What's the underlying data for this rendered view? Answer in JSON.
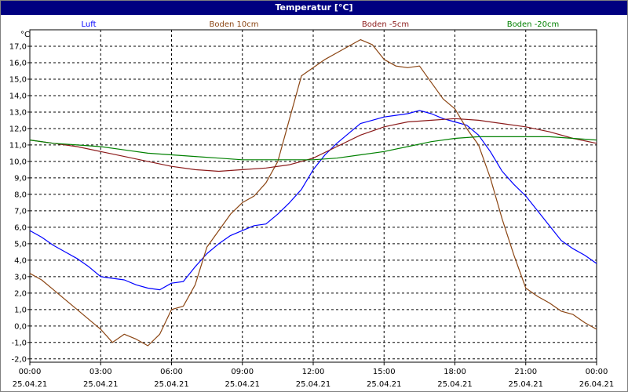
{
  "title": "Temperatur [°C]",
  "colors": {
    "titlebar": "#000080",
    "grid": "#000000"
  },
  "chart_data": {
    "type": "line",
    "title": "Temperatur [°C]",
    "ylabel": "°C",
    "ylim": [
      -2.2,
      18.0
    ],
    "yticks": [
      "17,0",
      "16,0",
      "15,0",
      "14,0",
      "13,0",
      "12,0",
      "11,0",
      "10,0",
      "9,0",
      "8,0",
      "7,0",
      "6,0",
      "5,0",
      "4,0",
      "3,0",
      "2,0",
      "1,0",
      "0,0",
      "-1,0",
      "-2,0"
    ],
    "ytick_values": [
      17,
      16,
      15,
      14,
      13,
      12,
      11,
      10,
      9,
      8,
      7,
      6,
      5,
      4,
      3,
      2,
      1,
      0,
      -1,
      -2
    ],
    "xlim": [
      0,
      24
    ],
    "xticks": [
      {
        "t": 0,
        "time": "00:00",
        "date": "25.04.21"
      },
      {
        "t": 3,
        "time": "03:00",
        "date": "25.04.21"
      },
      {
        "t": 6,
        "time": "06:00",
        "date": "25.04.21"
      },
      {
        "t": 9,
        "time": "09:00",
        "date": "25.04.21"
      },
      {
        "t": 12,
        "time": "12:00",
        "date": "25.04.21"
      },
      {
        "t": 15,
        "time": "15:00",
        "date": "25.04.21"
      },
      {
        "t": 18,
        "time": "18:00",
        "date": "25.04.21"
      },
      {
        "t": 21,
        "time": "21:00",
        "date": "25.04.21"
      },
      {
        "t": 24,
        "time": "00:00",
        "date": "26.04.21"
      }
    ],
    "grid": true,
    "legend": "top",
    "series": [
      {
        "name": "Luft",
        "color": "#0000ff",
        "points": [
          [
            0,
            5.8
          ],
          [
            0.5,
            5.4
          ],
          [
            1,
            4.9
          ],
          [
            1.5,
            4.5
          ],
          [
            2,
            4.1
          ],
          [
            2.5,
            3.6
          ],
          [
            3,
            3.0
          ],
          [
            3.5,
            2.9
          ],
          [
            4,
            2.8
          ],
          [
            4.5,
            2.5
          ],
          [
            5,
            2.3
          ],
          [
            5.5,
            2.2
          ],
          [
            6,
            2.6
          ],
          [
            6.5,
            2.7
          ],
          [
            7,
            3.6
          ],
          [
            7.5,
            4.4
          ],
          [
            8,
            5.0
          ],
          [
            8.5,
            5.5
          ],
          [
            9,
            5.8
          ],
          [
            9.5,
            6.1
          ],
          [
            10,
            6.2
          ],
          [
            10.5,
            6.8
          ],
          [
            11,
            7.5
          ],
          [
            11.5,
            8.3
          ],
          [
            12,
            9.5
          ],
          [
            12.5,
            10.4
          ],
          [
            13,
            11.1
          ],
          [
            13.5,
            11.7
          ],
          [
            14,
            12.3
          ],
          [
            14.5,
            12.5
          ],
          [
            15,
            12.7
          ],
          [
            15.5,
            12.8
          ],
          [
            16,
            12.9
          ],
          [
            16.5,
            13.1
          ],
          [
            17,
            12.9
          ],
          [
            17.5,
            12.6
          ],
          [
            18,
            12.4
          ],
          [
            18.5,
            12.2
          ],
          [
            19,
            11.6
          ],
          [
            19.5,
            10.6
          ],
          [
            20,
            9.4
          ],
          [
            20.5,
            8.6
          ],
          [
            21,
            7.9
          ],
          [
            21.5,
            7.0
          ],
          [
            22,
            6.1
          ],
          [
            22.5,
            5.2
          ],
          [
            23,
            4.7
          ],
          [
            23.5,
            4.3
          ],
          [
            24,
            3.8
          ]
        ]
      },
      {
        "name": "Boden 10cm",
        "color": "#8b4513",
        "points": [
          [
            0,
            3.2
          ],
          [
            0.5,
            2.8
          ],
          [
            1,
            2.2
          ],
          [
            1.5,
            1.6
          ],
          [
            2,
            1.0
          ],
          [
            2.5,
            0.4
          ],
          [
            3,
            -0.2
          ],
          [
            3.5,
            -1.0
          ],
          [
            4,
            -0.5
          ],
          [
            4.5,
            -0.8
          ],
          [
            5,
            -1.2
          ],
          [
            5.5,
            -0.5
          ],
          [
            6,
            1.0
          ],
          [
            6.5,
            1.2
          ],
          [
            7,
            2.5
          ],
          [
            7.5,
            4.8
          ],
          [
            8,
            5.8
          ],
          [
            8.5,
            6.8
          ],
          [
            9,
            7.5
          ],
          [
            9.5,
            7.9
          ],
          [
            10,
            8.7
          ],
          [
            10.5,
            10.0
          ],
          [
            11,
            12.6
          ],
          [
            11.5,
            15.2
          ],
          [
            12,
            15.7
          ],
          [
            12.5,
            16.2
          ],
          [
            13,
            16.6
          ],
          [
            13.5,
            17.0
          ],
          [
            14,
            17.4
          ],
          [
            14.5,
            17.1
          ],
          [
            15,
            16.2
          ],
          [
            15.5,
            15.8
          ],
          [
            16,
            15.7
          ],
          [
            16.5,
            15.8
          ],
          [
            17,
            14.8
          ],
          [
            17.5,
            13.8
          ],
          [
            18,
            13.2
          ],
          [
            18.5,
            12.0
          ],
          [
            19,
            11.0
          ],
          [
            19.5,
            9.0
          ],
          [
            20,
            6.5
          ],
          [
            20.5,
            4.3
          ],
          [
            21,
            2.3
          ],
          [
            21.5,
            1.8
          ],
          [
            22,
            1.4
          ],
          [
            22.5,
            0.9
          ],
          [
            23,
            0.7
          ],
          [
            23.5,
            0.2
          ],
          [
            24,
            -0.2
          ]
        ]
      },
      {
        "name": "Boden -5cm",
        "color": "#8b1a1a",
        "points": [
          [
            0,
            11.3
          ],
          [
            1,
            11.1
          ],
          [
            2,
            10.9
          ],
          [
            3,
            10.6
          ],
          [
            4,
            10.3
          ],
          [
            5,
            10.0
          ],
          [
            6,
            9.7
          ],
          [
            7,
            9.5
          ],
          [
            8,
            9.4
          ],
          [
            9,
            9.5
          ],
          [
            10,
            9.6
          ],
          [
            11,
            9.8
          ],
          [
            12,
            10.2
          ],
          [
            13,
            10.9
          ],
          [
            14,
            11.6
          ],
          [
            15,
            12.1
          ],
          [
            16,
            12.4
          ],
          [
            17,
            12.5
          ],
          [
            18,
            12.6
          ],
          [
            19,
            12.5
          ],
          [
            20,
            12.3
          ],
          [
            21,
            12.1
          ],
          [
            22,
            11.8
          ],
          [
            23,
            11.4
          ],
          [
            24,
            11.1
          ]
        ]
      },
      {
        "name": "Boden -20cm",
        "color": "#008000",
        "points": [
          [
            0,
            11.3
          ],
          [
            1,
            11.1
          ],
          [
            2,
            11.0
          ],
          [
            3,
            10.9
          ],
          [
            4,
            10.7
          ],
          [
            5,
            10.5
          ],
          [
            6,
            10.4
          ],
          [
            7,
            10.3
          ],
          [
            8,
            10.2
          ],
          [
            9,
            10.1
          ],
          [
            10,
            10.1
          ],
          [
            11,
            10.1
          ],
          [
            12,
            10.1
          ],
          [
            13,
            10.2
          ],
          [
            14,
            10.4
          ],
          [
            15,
            10.6
          ],
          [
            16,
            10.9
          ],
          [
            17,
            11.2
          ],
          [
            18,
            11.4
          ],
          [
            19,
            11.5
          ],
          [
            20,
            11.5
          ],
          [
            21,
            11.5
          ],
          [
            22,
            11.5
          ],
          [
            23,
            11.4
          ],
          [
            24,
            11.3
          ]
        ]
      }
    ]
  }
}
